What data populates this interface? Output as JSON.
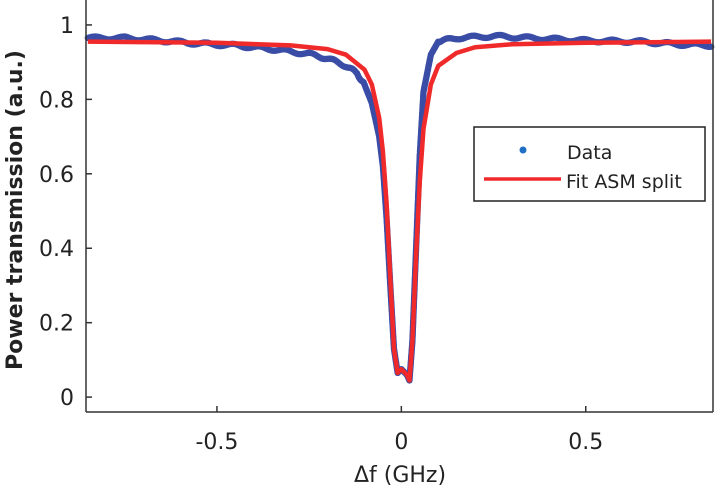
{
  "chart_data": {
    "type": "scatter",
    "title": "",
    "xlabel": "Δf (GHz)",
    "ylabel": "Power transmission (a.u.)",
    "xlim": [
      -0.855,
      0.845
    ],
    "ylim": [
      -0.04,
      1.067
    ],
    "xticks": [
      -0.5,
      0,
      0.5
    ],
    "xtick_labels": [
      "-0.5",
      "0",
      "0.5"
    ],
    "yticks": [
      0,
      0.2,
      0.4,
      0.6,
      0.8,
      1
    ],
    "ytick_labels": [
      "0",
      "0.2",
      "0.4",
      "0.6",
      "0.8",
      "1"
    ],
    "grid": false,
    "legend_placement": "right",
    "series": [
      {
        "name": "Data",
        "style": "markers",
        "color": "#3a4da6",
        "legend_color": "#1f6fc4",
        "x": [
          -0.85,
          -0.75,
          -0.65,
          -0.55,
          -0.45,
          -0.35,
          -0.25,
          -0.2,
          -0.15,
          -0.12,
          -0.1,
          -0.08,
          -0.06,
          -0.05,
          -0.04,
          -0.03,
          -0.02,
          -0.01,
          0,
          0.015,
          0.022,
          0.03,
          0.04,
          0.05,
          0.06,
          0.08,
          0.1,
          0.15,
          0.25,
          0.35,
          0.5,
          0.65,
          0.75,
          0.84
        ],
        "y": [
          0.965,
          0.965,
          0.958,
          0.95,
          0.945,
          0.935,
          0.922,
          0.91,
          0.89,
          0.87,
          0.84,
          0.79,
          0.7,
          0.62,
          0.48,
          0.3,
          0.13,
          0.065,
          0.075,
          0.06,
          0.045,
          0.15,
          0.4,
          0.65,
          0.82,
          0.92,
          0.955,
          0.965,
          0.97,
          0.965,
          0.958,
          0.955,
          0.948,
          0.945
        ]
      },
      {
        "name": "Fit ASM split",
        "style": "line",
        "color": "#f02a2a",
        "x": [
          -0.85,
          -0.5,
          -0.3,
          -0.2,
          -0.15,
          -0.1,
          -0.08,
          -0.06,
          -0.05,
          -0.04,
          -0.03,
          -0.02,
          -0.01,
          0,
          0.015,
          0.022,
          0.03,
          0.04,
          0.05,
          0.06,
          0.08,
          0.1,
          0.15,
          0.2,
          0.3,
          0.5,
          0.84
        ],
        "y": [
          0.955,
          0.952,
          0.945,
          0.935,
          0.92,
          0.88,
          0.84,
          0.75,
          0.66,
          0.52,
          0.32,
          0.13,
          0.065,
          0.075,
          0.06,
          0.045,
          0.15,
          0.38,
          0.58,
          0.72,
          0.84,
          0.89,
          0.925,
          0.94,
          0.948,
          0.952,
          0.955
        ]
      }
    ]
  }
}
